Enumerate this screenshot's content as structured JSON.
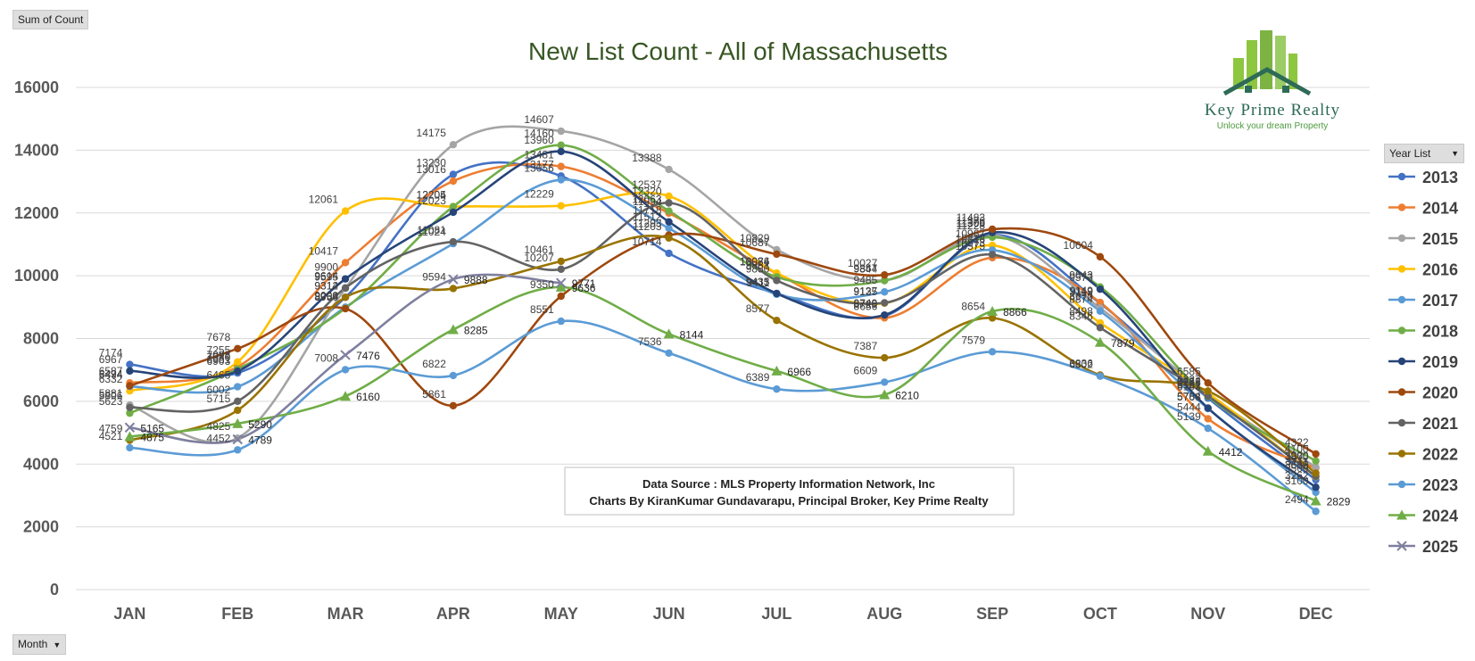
{
  "ui": {
    "value_chip": "Sum of Count",
    "axis_chip": "Month",
    "legend_chip": "Year List",
    "dropdown_glyph": "▼"
  },
  "logo": {
    "name": "Key Prime Realty",
    "tagline": "Unlock your dream Property"
  },
  "source_box": {
    "line1": "Data Source : MLS Property Information Network, Inc",
    "line2": "Charts By KiranKumar Gundavarapu, Principal Broker, Key Prime Realty"
  },
  "chart_data": {
    "type": "line",
    "title": "New List Count - All of Massachusetts",
    "xlabel": "",
    "ylabel": "",
    "categories": [
      "JAN",
      "FEB",
      "MAR",
      "APR",
      "MAY",
      "JUN",
      "JUL",
      "AUG",
      "SEP",
      "OCT",
      "NOV",
      "DEC"
    ],
    "ylim": [
      0,
      16000
    ],
    "yticks": [
      0,
      2000,
      4000,
      6000,
      8000,
      10000,
      12000,
      14000,
      16000
    ],
    "grid": true,
    "smooth": true,
    "legend_position": "right",
    "series": [
      {
        "name": "2013",
        "color": "#4472C4",
        "marker": "circle",
        "values": [
          7174,
          6903,
          9314,
          13230,
          13177,
          10714,
          9435,
          8720,
          11300,
          9119,
          6103,
          3500
        ]
      },
      {
        "name": "2014",
        "color": "#ED7D31",
        "marker": "circle",
        "values": [
          6587,
          7098,
          10417,
          13016,
          13481,
          11994,
          10074,
          8656,
          10575,
          9149,
          5444,
          3870
        ]
      },
      {
        "name": "2015",
        "color": "#A5A5A5",
        "marker": "circle",
        "values": [
          5881,
          4825,
          9595,
          14175,
          14607,
          13388,
          10829,
          9857,
          11306,
          8970,
          6236,
          3900
        ]
      },
      {
        "name": "2016",
        "color": "#FFC000",
        "marker": "circle",
        "values": [
          6332,
          7255,
          12061,
          12204,
          12229,
          12537,
          10086,
          9125,
          10967,
          8498,
          6262,
          3600
        ]
      },
      {
        "name": "2017",
        "color": "#5B9BD5",
        "marker": "circle",
        "values": [
          6474,
          6465,
          9000,
          11024,
          13056,
          11512,
          9411,
          9485,
          10818,
          8874,
          5768,
          3100
        ]
      },
      {
        "name": "2018",
        "color": "#70AD47",
        "marker": "circle",
        "values": [
          5623,
          7030,
          8964,
          12205,
          14160,
          12063,
          9961,
          9844,
          11228,
          9643,
          6151,
          4100
        ]
      },
      {
        "name": "2019",
        "color": "#264478",
        "marker": "circle",
        "values": [
          6967,
          6961,
          9900,
          12023,
          13960,
          11718,
          9433,
          8749,
          11376,
          9573,
          5784,
          3262
        ]
      },
      {
        "name": "2020",
        "color": "#9E480E",
        "marker": "circle",
        "values": [
          6494,
          7678,
          8950,
          5861,
          9350,
          11293,
          10687,
          10027,
          11483,
          10604,
          6585,
          4322
        ]
      },
      {
        "name": "2021",
        "color": "#636363",
        "marker": "circle",
        "values": [
          5806,
          6002,
          9614,
          11081,
          10207,
          12320,
          9850,
          9137,
          10673,
          8346,
          6167,
          3612
        ]
      },
      {
        "name": "2022",
        "color": "#997300",
        "marker": "circle",
        "values": [
          4759,
          5715,
          9312,
          9594,
          10461,
          11203,
          8577,
          7387,
          8654,
          6836,
          6327,
          3711
        ]
      },
      {
        "name": "2023",
        "color": "#5B9BD5",
        "marker": "circle",
        "values": [
          4521,
          4452,
          7008,
          6822,
          8551,
          7536,
          6389,
          6609,
          7579,
          6802,
          5139,
          2494
        ]
      },
      {
        "name": "2024",
        "color": "#70AD47",
        "marker": "triangle",
        "values": [
          4875,
          5290,
          6160,
          8285,
          9636,
          8144,
          6966,
          6210,
          8866,
          7879,
          4412,
          2829
        ]
      },
      {
        "name": "2025",
        "color": "#7F7F9F",
        "marker": "x",
        "values": [
          5165,
          4789,
          7476,
          9888,
          9771,
          null,
          null,
          null,
          null,
          null,
          null,
          null
        ]
      }
    ]
  }
}
